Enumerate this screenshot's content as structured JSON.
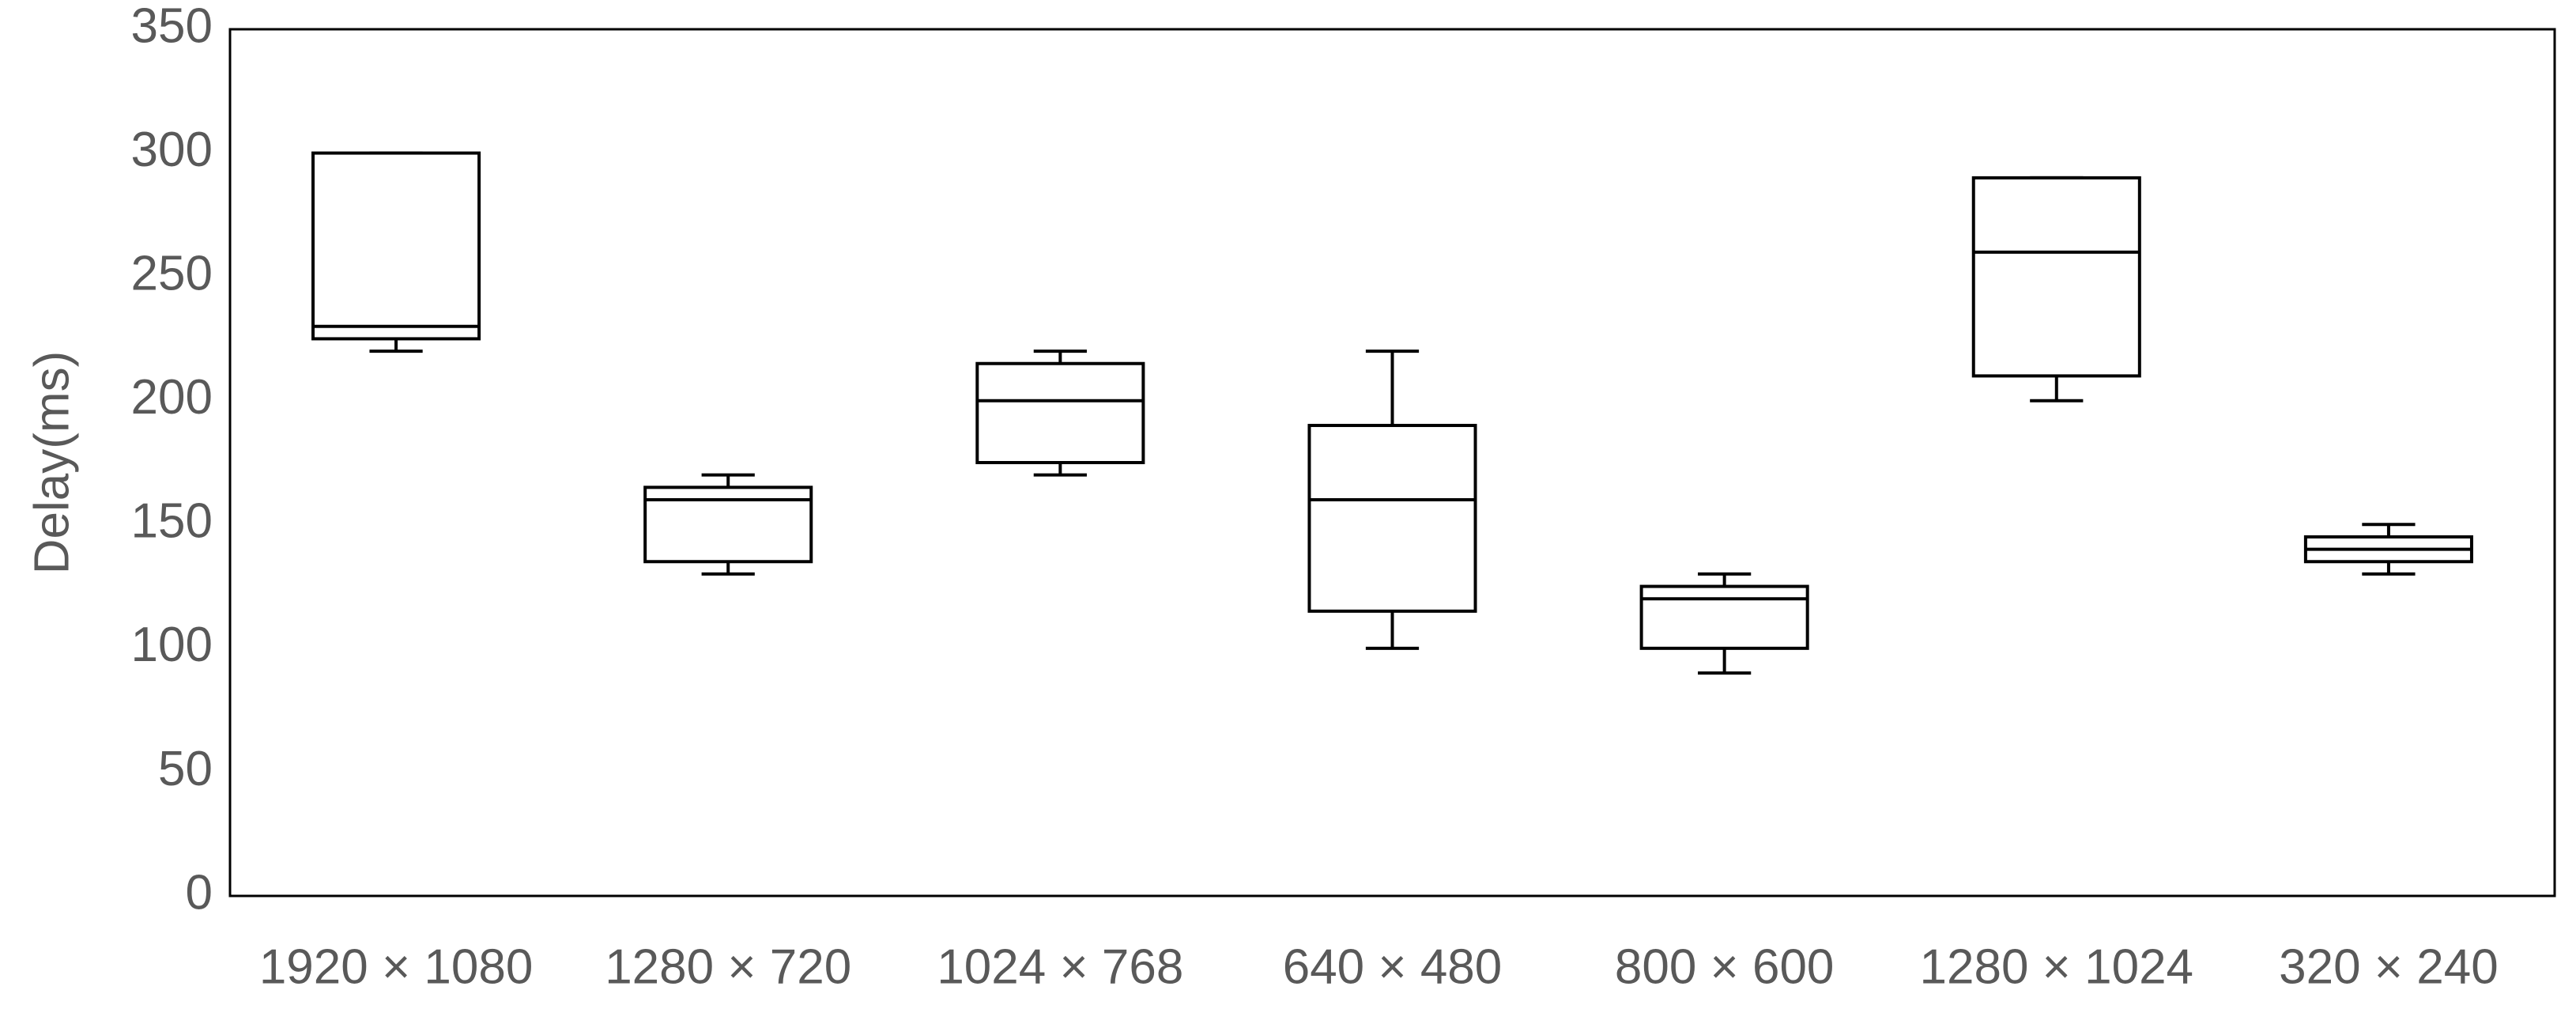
{
  "chart_data": {
    "type": "box",
    "y_label": "Delay(ms)",
    "categories": [
      "1920 × 1080",
      "1280 × 720",
      "1024 × 768",
      "640 × 480",
      "800 × 600",
      "1280 × 1024",
      "320 × 240"
    ],
    "boxes": [
      {
        "low": 220,
        "q1": 225,
        "median": 230,
        "q3": 300,
        "high": 300
      },
      {
        "low": 130,
        "q1": 135,
        "median": 160,
        "q3": 165,
        "high": 170
      },
      {
        "low": 170,
        "q1": 175,
        "median": 200,
        "q3": 215,
        "high": 220
      },
      {
        "low": 100,
        "q1": 115,
        "median": 160,
        "q3": 190,
        "high": 220
      },
      {
        "low": 90,
        "q1": 100,
        "median": 120,
        "q3": 125,
        "high": 130
      },
      {
        "low": 200,
        "q1": 210,
        "median": 260,
        "q3": 290,
        "high": 290
      },
      {
        "low": 130,
        "q1": 135,
        "median": 140,
        "q3": 145,
        "high": 150
      }
    ],
    "color": "#000000",
    "ylim": [
      0,
      350
    ],
    "yticks": [
      0,
      50,
      100,
      150,
      200,
      250,
      300,
      350
    ],
    "grid": false
  }
}
